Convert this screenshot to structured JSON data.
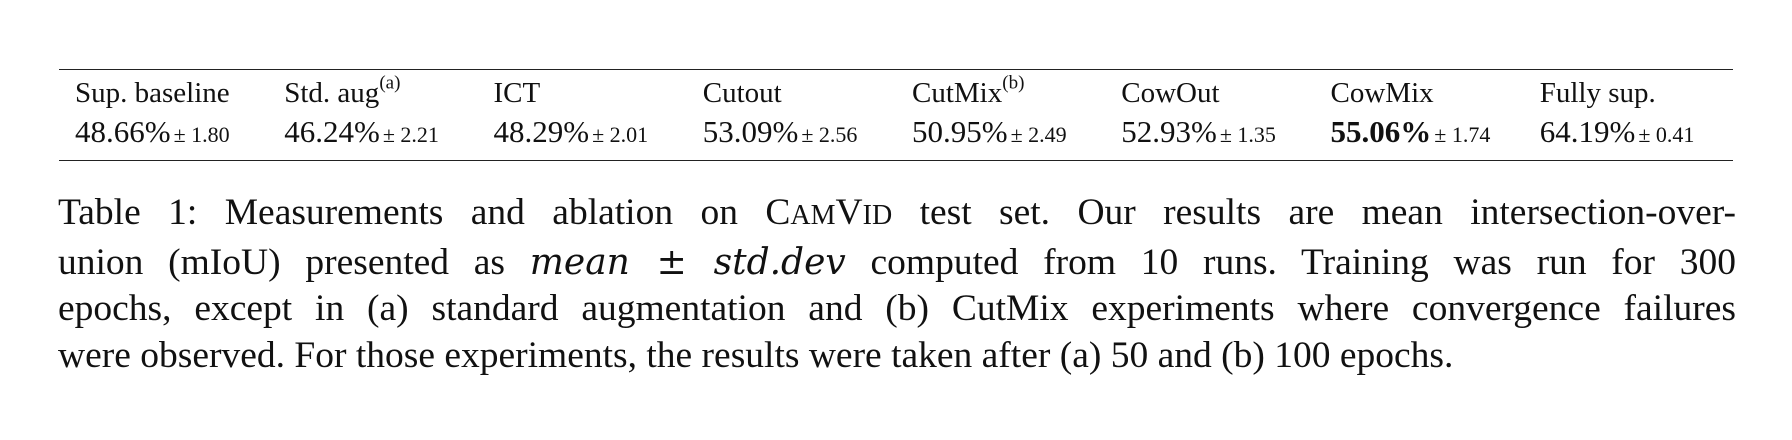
{
  "table": {
    "columns": [
      {
        "header": "Sup. baseline",
        "sup": "",
        "value": "48.66%",
        "pm": "± 1.80",
        "best": false
      },
      {
        "header": "Std. aug",
        "sup": "(a)",
        "value": "46.24%",
        "pm": "± 2.21",
        "best": false
      },
      {
        "header": "ICT",
        "sup": "",
        "value": "48.29%",
        "pm": "± 2.01",
        "best": false
      },
      {
        "header": "Cutout",
        "sup": "",
        "value": "53.09%",
        "pm": "± 2.56",
        "best": false
      },
      {
        "header": "CutMix",
        "sup": "(b)",
        "value": "50.95%",
        "pm": "± 2.49",
        "best": false
      },
      {
        "header": "CowOut",
        "sup": "",
        "value": "52.93%",
        "pm": "± 1.35",
        "best": false
      },
      {
        "header": "CowMix",
        "sup": "",
        "value": "55.06%",
        "pm": "± 1.74",
        "best": true
      },
      {
        "header": "Fully sup.",
        "sup": "",
        "value": "64.19%",
        "pm": "± 0.41",
        "best": false
      }
    ]
  },
  "caption": {
    "label": "Table 1:",
    "l1_a": "Measurements and ablation on",
    "cam_c": "C",
    "cam_rest": "AM",
    "vid_v": "V",
    "vid_rest": "ID",
    "l1_b": "test set. Our results are mean intersection-over-",
    "l2_a": "union (mIoU) presented as",
    "l2_math": "mean ± std.dev",
    "l2_b": "computed from 10 runs. Training was run for 300",
    "l3": "epochs, except in (a) standard augmentation and (b) CutMix experiments where convergence failures",
    "l4": "were observed. For those experiments, the results were taken after (a) 50 and (b) 100 epochs."
  }
}
